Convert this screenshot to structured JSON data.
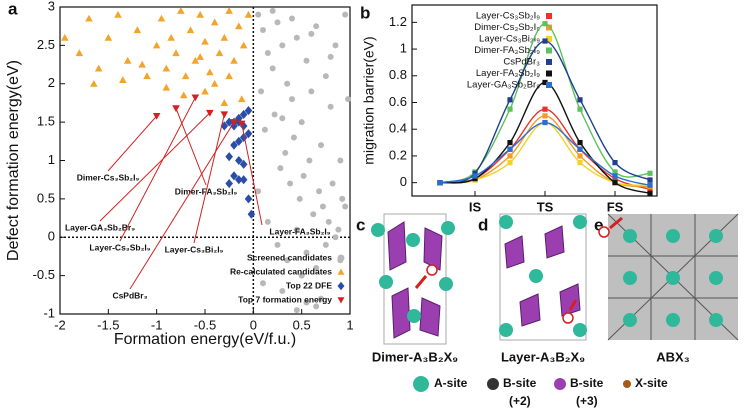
{
  "chart_data": [
    {
      "type": "scatter",
      "xlabel": "Formation energy(eV/f.u.)",
      "ylabel": "Defect formation energy(eV)",
      "xlim": [
        -2,
        1
      ],
      "ylim": [
        -1,
        3
      ],
      "xticks": [
        -2,
        -1.5,
        -1,
        -0.5,
        0,
        0.5,
        1
      ],
      "yticks": [
        -1,
        -0.5,
        0,
        0.5,
        1,
        1.5,
        2,
        2.5,
        3
      ],
      "legend": "lower right",
      "reference_lines": true,
      "series": [
        {
          "name": "Screened candidates",
          "color": "#b8b8b8",
          "marker": "circle",
          "x": [
            0.05,
            0.1,
            0.15,
            0.2,
            0.25,
            0.3,
            0.35,
            0.4,
            0.45,
            0.5,
            0.55,
            0.6,
            0.65,
            0.7,
            0.75,
            0.8,
            0.85,
            0.9,
            0.95,
            0.08,
            0.12,
            0.22,
            0.28,
            0.33,
            0.38,
            0.42,
            0.48,
            0.52,
            0.58,
            0.62,
            0.68,
            0.72,
            0.78,
            0.82,
            0.88,
            0.92,
            0.98,
            0.05,
            0.15,
            0.25,
            0.35,
            0.45,
            0.55,
            0.65,
            0.75,
            0.85,
            0.95,
            0.1,
            0.3,
            0.5,
            0.7,
            0.9,
            0.2,
            0.4,
            0.6,
            0.8,
            0.45,
            0.55,
            0.65,
            0.3
          ],
          "y": [
            2.9,
            2.7,
            2.4,
            2.2,
            2.8,
            2.5,
            2.0,
            1.8,
            2.6,
            1.5,
            2.3,
            1.9,
            2.75,
            1.2,
            2.1,
            1.7,
            2.5,
            1.0,
            2.9,
            1.9,
            1.4,
            1.6,
            0.9,
            1.1,
            0.7,
            1.3,
            0.5,
            0.8,
            1.0,
            0.3,
            0.6,
            0.4,
            0.2,
            0.7,
            0.1,
            0.5,
            1.8,
            0.6,
            0.2,
            -0.1,
            -0.3,
            0.1,
            -0.2,
            -0.4,
            -0.1,
            0.0,
            0.4,
            -0.6,
            -0.7,
            -0.5,
            -0.8,
            -0.3,
            2.95,
            2.85,
            2.65,
            2.35,
            -0.95,
            -0.85,
            -0.9,
            1.55
          ]
        },
        {
          "name": "Re-calculated candidates",
          "color": "#f3a42a",
          "marker": "triangle-up",
          "x": [
            -1.95,
            -1.8,
            -1.7,
            -1.6,
            -1.5,
            -1.4,
            -1.3,
            -1.2,
            -1.1,
            -1.0,
            -0.95,
            -0.9,
            -0.85,
            -0.8,
            -0.75,
            -0.7,
            -0.65,
            -0.6,
            -0.55,
            -0.5,
            -0.45,
            -0.4,
            -0.35,
            -0.3,
            -0.25,
            -0.2,
            -0.15,
            -0.1,
            -0.05,
            -1.65,
            -1.35,
            -1.15,
            -0.9,
            -0.72,
            -0.5,
            -0.4,
            -0.25,
            -0.12,
            -0.3,
            -0.55
          ],
          "y": [
            2.6,
            2.4,
            2.85,
            2.2,
            2.6,
            2.9,
            2.3,
            2.7,
            2.1,
            2.5,
            2.85,
            2.2,
            2.6,
            2.4,
            2.95,
            2.1,
            2.7,
            2.3,
            2.9,
            2.55,
            2.15,
            2.8,
            2.4,
            2.6,
            2.95,
            2.3,
            2.75,
            2.5,
            2.9,
            2.0,
            2.05,
            2.25,
            1.95,
            1.85,
            1.9,
            2.0,
            2.1,
            1.8,
            1.75,
            2.35
          ]
        },
        {
          "name": "Top 22 DFE",
          "color": "#2a4ea8",
          "marker": "diamond",
          "x": [
            -0.05,
            -0.1,
            -0.15,
            -0.2,
            -0.25,
            -0.15,
            -0.1,
            -0.05,
            -0.15,
            -0.2,
            -0.25,
            -0.15,
            -0.1,
            -0.2,
            -0.15,
            -0.25,
            -0.1,
            -0.05,
            -0.02,
            -0.3,
            -0.2,
            -0.1
          ],
          "y": [
            1.65,
            1.6,
            1.55,
            1.5,
            1.5,
            1.5,
            1.3,
            1.35,
            1.25,
            1.2,
            1.05,
            1.0,
            0.95,
            0.8,
            0.75,
            0.7,
            0.75,
            0.5,
            0.3,
            1.45,
            1.45,
            1.45
          ]
        },
        {
          "name": "Top 7 formation energy",
          "color": "#d42020",
          "marker": "triangle-down",
          "x": [
            -1.0,
            -0.8,
            -0.6,
            -0.45,
            -0.3,
            -0.2,
            -0.12
          ],
          "y": [
            1.58,
            1.68,
            1.82,
            1.62,
            1.6,
            1.5,
            1.48
          ]
        }
      ],
      "annotations": [
        "Layer-GA₃Sb₂Br₉",
        "Dimer-Cs₃Sb₂I₉",
        "Layer-Cs₃Sb₂I₉",
        "Dimer-FA₃Sb₂I₉",
        "Layer-Cs₃Bi₂I₉",
        "CsPdBr₃",
        "Layer-FA₃Sb₂I₉"
      ]
    },
    {
      "type": "line",
      "ylabel": "migration barrier(eV)",
      "x": [
        0,
        1,
        2,
        3,
        4,
        5,
        6
      ],
      "xlim": [
        -0.8,
        6.2
      ],
      "xticks": [
        {
          "value": 1,
          "label": "IS"
        },
        {
          "value": 3,
          "label": "TS"
        },
        {
          "value": 5,
          "label": "FS"
        }
      ],
      "ylim": [
        -0.1,
        1.33
      ],
      "yticks": [
        0,
        0.2,
        0.4,
        0.6,
        0.8,
        1,
        1.2
      ],
      "legend": "upper left",
      "series": [
        {
          "name": "Layer-Cs₃Sb₂I₉",
          "color": "#e8322a",
          "values": [
            0,
            0.03,
            0.25,
            0.55,
            0.25,
            0.03,
            -0.05
          ]
        },
        {
          "name": "Dimer-Cs₃Sb₂I₉",
          "color": "#f39a2a",
          "values": [
            0,
            0.02,
            0.2,
            0.5,
            0.2,
            0.0,
            -0.03
          ]
        },
        {
          "name": "Layer-Cs₃Bi₂I₉",
          "color": "#f2d12a",
          "values": [
            0,
            0.02,
            0.15,
            0.45,
            0.15,
            0.0,
            -0.02
          ]
        },
        {
          "name": "Dimer-FA₃Sb₂I₉",
          "color": "#5cc25c",
          "values": [
            0,
            0.08,
            0.55,
            1.19,
            0.55,
            0.08,
            0.07
          ]
        },
        {
          "name": "CsPdBr₃",
          "color": "#1f3f8f",
          "values": [
            0,
            0.07,
            0.62,
            1.06,
            0.62,
            0.15,
            0.02
          ]
        },
        {
          "name": "Layer-FA₃Sb₂I₉",
          "color": "#111111",
          "values": [
            0,
            0.03,
            0.3,
            0.75,
            0.3,
            0.0,
            -0.08
          ]
        },
        {
          "name": "Layer-GA₃Sb₂Br₉",
          "color": "#2a6fd0",
          "values": [
            0,
            0.05,
            0.25,
            0.45,
            0.25,
            0.05,
            -0.02
          ]
        }
      ]
    }
  ],
  "panels": {
    "letters": [
      "a",
      "b",
      "c",
      "d",
      "e"
    ],
    "structures": [
      "Dimer-A₃B₂X₉",
      "Layer-A₃B₂X₉",
      "ABX₃"
    ],
    "legend": [
      {
        "name": "A-site"
      },
      {
        "name": "B-site",
        "note": "(+2)"
      },
      {
        "name": "B-site",
        "note": "(+3)"
      },
      {
        "name": "X-site"
      }
    ]
  }
}
